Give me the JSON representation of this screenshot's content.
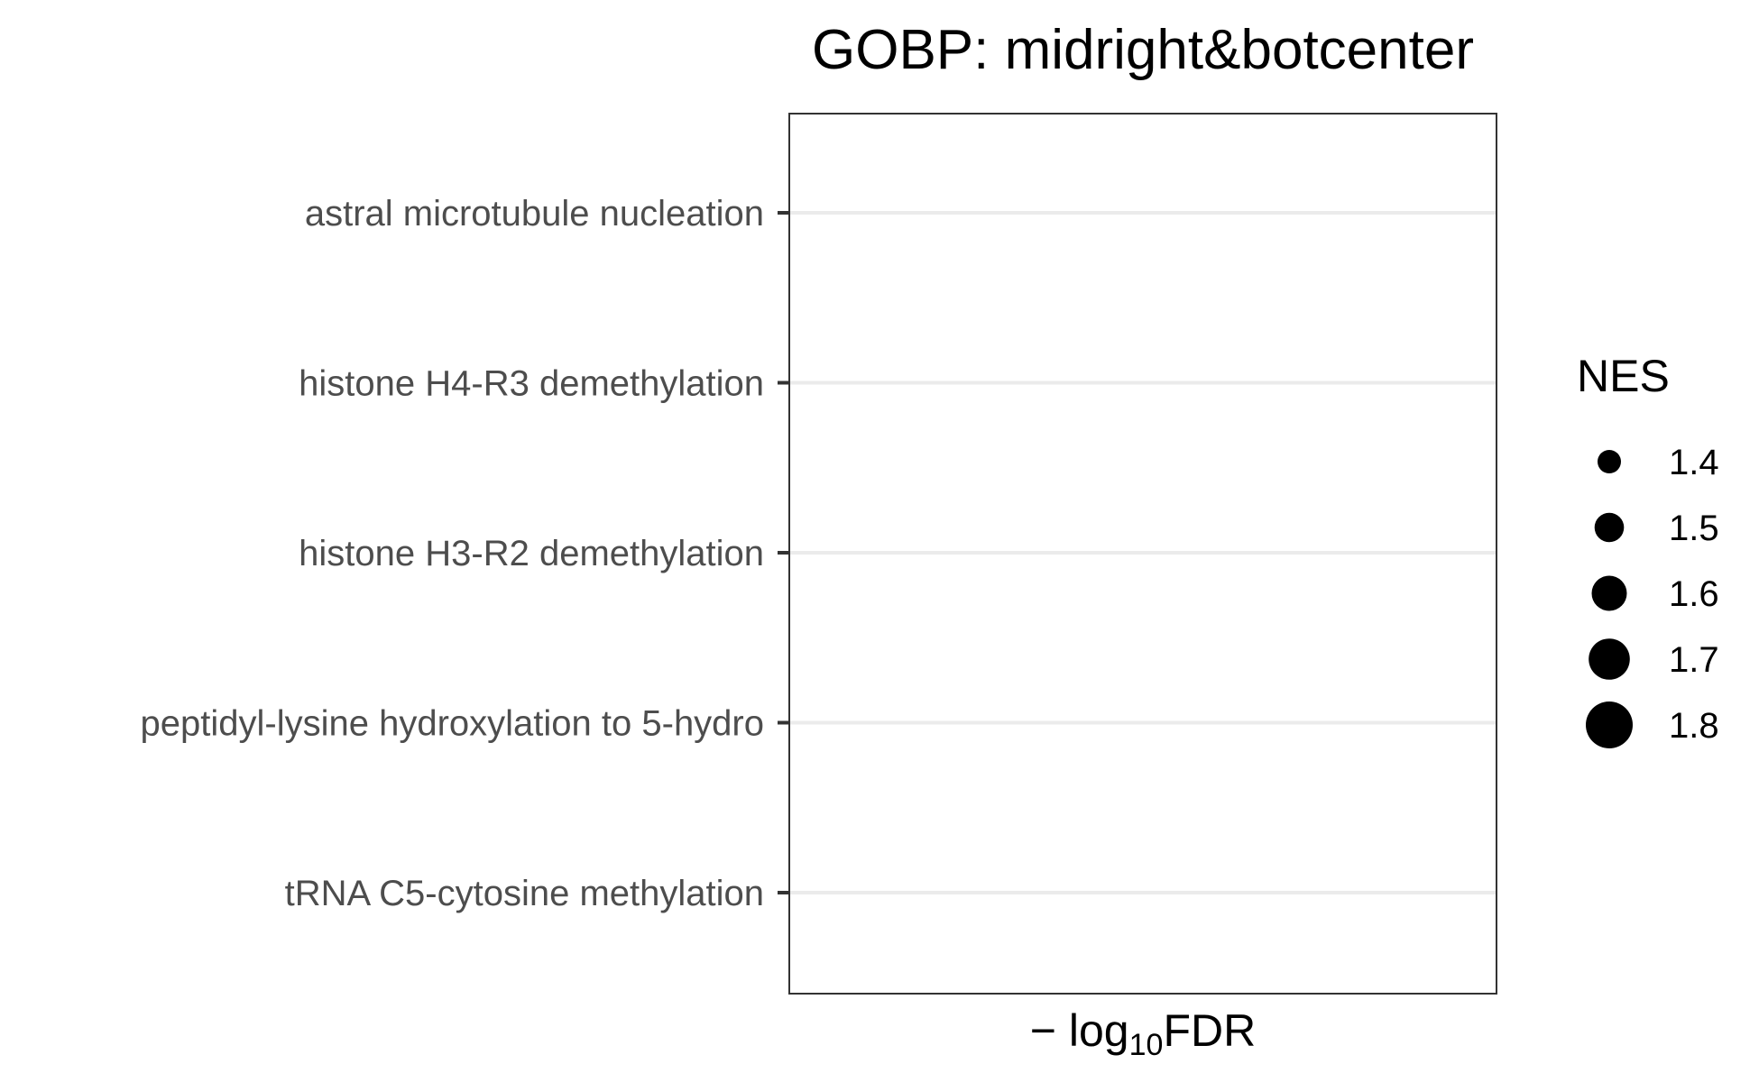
{
  "chart_data": {
    "type": "scatter",
    "title": "GOBP: midright&botcenter",
    "xlabel": "−log10FDR",
    "xlabel_parts": {
      "prefix": "− log",
      "subscript": "10",
      "suffix": "FDR"
    },
    "ylabel": "",
    "categories": [
      "astral microtubule nucleation",
      "histone H4-R3 demethylation",
      "histone H3-R2 demethylation",
      "peptidyl-lysine hydroxylation to 5-hydro",
      "tRNA C5-cytosine methylation"
    ],
    "series": [],
    "grid": "horizontal major gridlines only",
    "legend": {
      "title": "NES",
      "placement": "right",
      "entries": [
        {
          "label": "1.4",
          "value": 1.4
        },
        {
          "label": "1.5",
          "value": 1.5
        },
        {
          "label": "1.6",
          "value": 1.6
        },
        {
          "label": "1.7",
          "value": 1.7
        },
        {
          "label": "1.8",
          "value": 1.8
        }
      ]
    },
    "colors": {
      "point": "#000000",
      "grid": "#ebebeb",
      "panel_border": "#333333",
      "tick_label": "#4d4d4d"
    }
  }
}
